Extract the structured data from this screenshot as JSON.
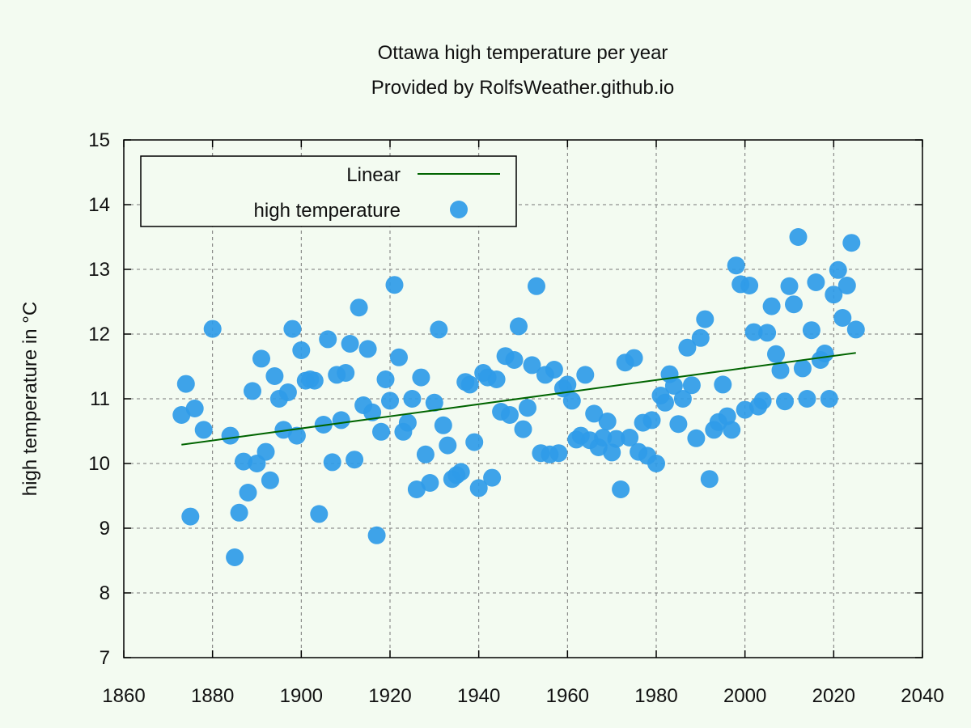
{
  "chart_data": {
    "type": "scatter",
    "title": "Ottawa high temperature per year",
    "subtitle": "Provided by RolfsWeather.github.io",
    "xlabel": "",
    "ylabel": "high temperature in °C",
    "xlim": [
      1860,
      2040
    ],
    "ylim": [
      7,
      15
    ],
    "xticks": [
      1860,
      1880,
      1900,
      1920,
      1940,
      1960,
      1980,
      2000,
      2020,
      2040
    ],
    "yticks": [
      7,
      8,
      9,
      10,
      11,
      12,
      13,
      14,
      15
    ],
    "grid": true,
    "legend_position": "top-left",
    "colors": {
      "points": "#2f9be8",
      "line": "#006400",
      "background": "#f3fbf1"
    },
    "series": [
      {
        "name": "high temperature",
        "kind": "points",
        "x": [
          1873,
          1874,
          1875,
          1876,
          1878,
          1880,
          1884,
          1885,
          1886,
          1887,
          1888,
          1889,
          1890,
          1891,
          1892,
          1893,
          1894,
          1895,
          1896,
          1897,
          1898,
          1899,
          1900,
          1901,
          1902,
          1903,
          1904,
          1905,
          1906,
          1907,
          1908,
          1909,
          1910,
          1911,
          1912,
          1913,
          1914,
          1915,
          1916,
          1917,
          1918,
          1919,
          1920,
          1921,
          1922,
          1923,
          1924,
          1925,
          1926,
          1927,
          1928,
          1929,
          1930,
          1931,
          1932,
          1933,
          1934,
          1935,
          1936,
          1937,
          1938,
          1939,
          1940,
          1941,
          1942,
          1943,
          1944,
          1945,
          1946,
          1947,
          1948,
          1949,
          1950,
          1951,
          1952,
          1953,
          1954,
          1955,
          1956,
          1957,
          1958,
          1959,
          1960,
          1961,
          1962,
          1963,
          1964,
          1965,
          1966,
          1967,
          1968,
          1969,
          1970,
          1971,
          1972,
          1973,
          1974,
          1975,
          1976,
          1977,
          1978,
          1979,
          1980,
          1981,
          1982,
          1983,
          1984,
          1985,
          1986,
          1987,
          1988,
          1989,
          1990,
          1991,
          1992,
          1993,
          1994,
          1995,
          1996,
          1997,
          1998,
          1999,
          2000,
          2001,
          2002,
          2003,
          2004,
          2005,
          2006,
          2007,
          2008,
          2009,
          2010,
          2011,
          2012,
          2013,
          2014,
          2015,
          2016,
          2017,
          2018,
          2019,
          2020,
          2021,
          2022,
          2023,
          2024,
          2025
        ],
        "y": [
          10.75,
          11.23,
          9.18,
          10.85,
          10.52,
          12.08,
          10.43,
          8.55,
          9.24,
          10.03,
          9.55,
          11.12,
          10.0,
          11.62,
          10.18,
          9.74,
          11.35,
          11.0,
          10.52,
          11.1,
          12.08,
          10.43,
          11.75,
          11.28,
          11.3,
          11.28,
          9.22,
          10.6,
          11.92,
          10.02,
          11.37,
          10.67,
          11.4,
          11.85,
          10.06,
          12.41,
          10.9,
          11.77,
          10.79,
          8.89,
          10.49,
          11.3,
          10.97,
          12.76,
          11.64,
          10.49,
          10.63,
          11.0,
          9.6,
          11.33,
          10.14,
          9.7,
          10.94,
          12.07,
          10.59,
          10.28,
          9.76,
          9.82,
          9.87,
          11.26,
          11.22,
          10.33,
          9.62,
          11.4,
          11.33,
          9.78,
          11.3,
          10.8,
          11.66,
          10.75,
          11.6,
          12.12,
          10.53,
          10.86,
          11.52,
          12.74,
          10.16,
          11.37,
          10.14,
          11.45,
          10.16,
          11.16,
          11.22,
          10.97,
          10.37,
          10.43,
          11.37,
          10.36,
          10.77,
          10.25,
          10.4,
          10.65,
          10.17,
          10.38,
          9.6,
          11.56,
          10.4,
          11.63,
          10.18,
          10.63,
          10.12,
          10.67,
          10.0,
          11.05,
          10.94,
          11.38,
          11.2,
          10.61,
          11.0,
          11.79,
          11.21,
          10.39,
          11.94,
          12.23,
          9.76,
          10.52,
          10.64,
          11.22,
          10.73,
          10.52,
          13.06,
          12.77,
          10.83,
          12.75,
          12.03,
          10.88,
          10.97,
          12.02,
          12.43,
          11.69,
          11.44,
          10.96,
          12.74,
          12.46,
          13.5,
          11.47,
          11.0,
          12.06,
          12.8,
          11.6,
          11.7,
          11.0,
          12.61,
          12.99,
          12.25,
          12.75,
          13.41,
          12.07
        ]
      },
      {
        "name": "Linear",
        "kind": "line",
        "x": [
          1873,
          2025
        ],
        "y": [
          10.29,
          11.71
        ]
      }
    ]
  }
}
